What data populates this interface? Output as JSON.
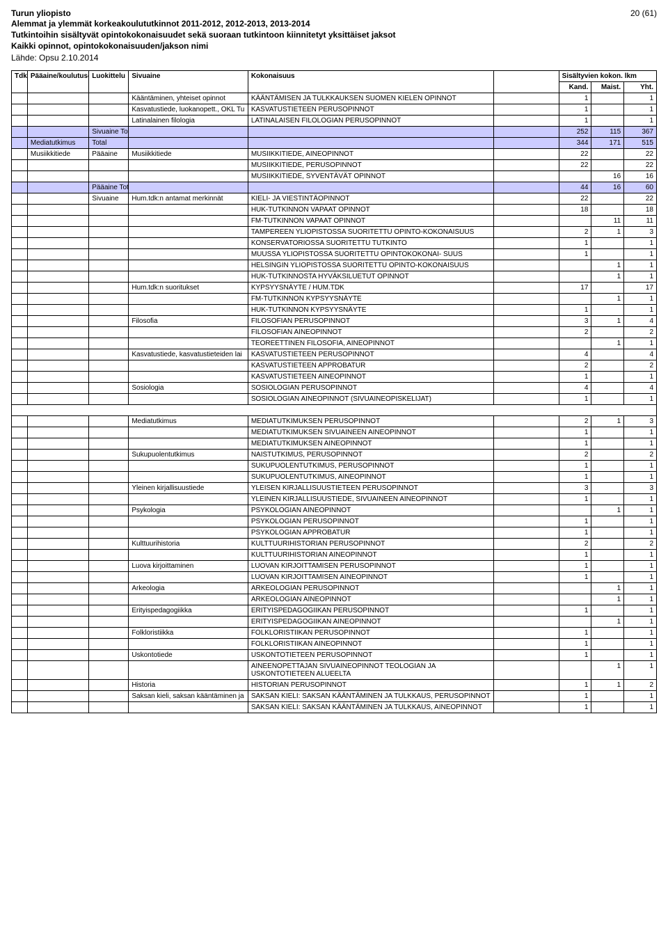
{
  "header": {
    "org": "Turun yliopisto",
    "page": "20 (61)",
    "line2": "Alemmat ja ylemmät korkeakoulututkinnot 2011-2012, 2012-2013, 2013-2014",
    "line3": "Tutkintoihin sisältyvät opintokokonaisuudet sekä suoraan tutkintoon kiinnitetyt yksittäiset jaksot",
    "line4": "Kaikki opinnot, opintokokonaisuuden/jakson nimi",
    "line5": "Lähde: Opsu 2.10.2014"
  },
  "table": {
    "columns": {
      "tdk": "Tdk",
      "paa": "Pääaine/koulutusohjelma",
      "luo": "Luokittelu",
      "siv": "Sivuaine",
      "kok": "Kokonaisuus",
      "sis_label": "Sisältyvien kokon. lkm",
      "kand": "Kand.",
      "maist": "Maist.",
      "yht": "Yht."
    },
    "rows": [
      {
        "siv": "Kääntäminen, yhteiset opinnot",
        "kok": "KÄÄNTÄMISEN JA TULKKAUKSEN SUOMEN KIELEN OPINNOT",
        "kand": "1",
        "maist": "",
        "yht": "1",
        "wrap": true
      },
      {
        "siv": "Kasvatustiede, luokanopett., OKL Tu",
        "kok": "KASVATUSTIETEEN PERUSOPINNOT",
        "kand": "1",
        "maist": "",
        "yht": "1"
      },
      {
        "siv": "Latinalainen filologia",
        "kok": "LATINALAISEN FILOLOGIAN PERUSOPINNOT",
        "kand": "1",
        "maist": "",
        "yht": "1"
      },
      {
        "luo": "Sivuaine Total",
        "kand": "252",
        "maist": "115",
        "yht": "367",
        "hl": true
      },
      {
        "paa": "Mediatutkimus",
        "luo": "Total",
        "kand": "344",
        "maist": "171",
        "yht": "515",
        "hl": true
      },
      {
        "paa": "Musiikkitiede",
        "luo": "Pääaine",
        "siv": "Musiikkitiede",
        "kok": "MUSIIKKITIEDE, AINEOPINNOT",
        "kand": "22",
        "maist": "",
        "yht": "22"
      },
      {
        "kok": "MUSIIKKITIEDE, PERUSOPINNOT",
        "kand": "22",
        "maist": "",
        "yht": "22"
      },
      {
        "kok": "MUSIIKKITIEDE, SYVENTÄVÄT OPINNOT",
        "kand": "",
        "maist": "16",
        "yht": "16"
      },
      {
        "luo": "Pääaine Total",
        "kand": "44",
        "maist": "16",
        "yht": "60",
        "hl": true
      },
      {
        "luo": "Sivuaine",
        "siv": "Hum.tdk:n antamat merkinnät",
        "kok": "KIELI- JA VIESTINTÄOPINNOT",
        "kand": "22",
        "maist": "",
        "yht": "22"
      },
      {
        "kok": "HUK-TUTKINNON VAPAAT OPINNOT",
        "kand": "18",
        "maist": "",
        "yht": "18"
      },
      {
        "kok": "FM-TUTKINNON VAPAAT OPINNOT",
        "kand": "",
        "maist": "11",
        "yht": "11"
      },
      {
        "kok": "TAMPEREEN YLIOPISTOSSA SUORITETTU OPINTO-KOKONAISUUS",
        "kand": "2",
        "maist": "1",
        "yht": "3",
        "wrap": true
      },
      {
        "kok": "KONSERVATORIOSSA SUORITETTU TUTKINTO",
        "kand": "1",
        "maist": "",
        "yht": "1"
      },
      {
        "kok": "MUUSSA YLIOPISTOSSA SUORITETTU OPINTOKOKONAI- SUUS",
        "kand": "1",
        "maist": "",
        "yht": "1",
        "wrap": true
      },
      {
        "kok": "HELSINGIN YLIOPISTOSSA SUORITETTU OPINTO-KOKONAISUUS",
        "kand": "",
        "maist": "1",
        "yht": "1",
        "wrap": true
      },
      {
        "kok": "HUK-TUTKINNOSTA HYVÄKSILUETUT OPINNOT",
        "kand": "",
        "maist": "1",
        "yht": "1"
      },
      {
        "siv": "Hum.tdk:n suoritukset",
        "kok": "KYPSYYSNÄYTE / HUM.TDK",
        "kand": "17",
        "maist": "",
        "yht": "17"
      },
      {
        "kok": "FM-TUTKINNON KYPSYYSNÄYTE",
        "kand": "",
        "maist": "1",
        "yht": "1"
      },
      {
        "kok": "HUK-TUTKINNON KYPSYYSNÄYTE",
        "kand": "1",
        "maist": "",
        "yht": "1"
      },
      {
        "siv": "Filosofia",
        "kok": "FILOSOFIAN PERUSOPINNOT",
        "kand": "3",
        "maist": "1",
        "yht": "4"
      },
      {
        "kok": "FILOSOFIAN AINEOPINNOT",
        "kand": "2",
        "maist": "",
        "yht": "2"
      },
      {
        "kok": "TEOREETTINEN FILOSOFIA, AINEOPINNOT",
        "kand": "",
        "maist": "1",
        "yht": "1"
      },
      {
        "siv": "Kasvatustiede, kasvatustieteiden lai",
        "kok": "KASVATUSTIETEEN PERUSOPINNOT",
        "kand": "4",
        "maist": "",
        "yht": "4"
      },
      {
        "kok": "KASVATUSTIETEEN APPROBATUR",
        "kand": "2",
        "maist": "",
        "yht": "2"
      },
      {
        "kok": "KASVATUSTIETEEN AINEOPINNOT",
        "kand": "1",
        "maist": "",
        "yht": "1"
      },
      {
        "siv": "Sosiologia",
        "kok": "SOSIOLOGIAN PERUSOPINNOT",
        "kand": "4",
        "maist": "",
        "yht": "4"
      },
      {
        "kok": "SOSIOLOGIAN AINEOPINNOT (SIVUAINEOPISKELIJAT)",
        "kand": "1",
        "maist": "",
        "yht": "1"
      },
      {
        "gap": true
      },
      {
        "siv": "Mediatutkimus",
        "kok": "MEDIATUTKIMUKSEN PERUSOPINNOT",
        "kand": "2",
        "maist": "1",
        "yht": "3"
      },
      {
        "kok": "MEDIATUTKIMUKSEN SIVUAINEEN AINEOPINNOT",
        "kand": "1",
        "maist": "",
        "yht": "1"
      },
      {
        "kok": "MEDIATUTKIMUKSEN AINEOPINNOT",
        "kand": "1",
        "maist": "",
        "yht": "1"
      },
      {
        "siv": "Sukupuolentutkimus",
        "kok": "NAISTUTKIMUS, PERUSOPINNOT",
        "kand": "2",
        "maist": "",
        "yht": "2"
      },
      {
        "kok": "SUKUPUOLENTUTKIMUS, PERUSOPINNOT",
        "kand": "1",
        "maist": "",
        "yht": "1"
      },
      {
        "kok": "SUKUPUOLENTUTKIMUS, AINEOPINNOT",
        "kand": "1",
        "maist": "",
        "yht": "1"
      },
      {
        "siv": "Yleinen kirjallisuustiede",
        "kok": "YLEISEN KIRJALLISUUSTIETEEN PERUSOPINNOT",
        "kand": "3",
        "maist": "",
        "yht": "3"
      },
      {
        "kok": "YLEINEN KIRJALLISUUSTIEDE, SIVUAINEEN AINEOPINNOT",
        "kand": "1",
        "maist": "",
        "yht": "1",
        "wrap": true
      },
      {
        "siv": "Psykologia",
        "kok": "PSYKOLOGIAN AINEOPINNOT",
        "kand": "",
        "maist": "1",
        "yht": "1"
      },
      {
        "kok": "PSYKOLOGIAN PERUSOPINNOT",
        "kand": "1",
        "maist": "",
        "yht": "1"
      },
      {
        "kok": "PSYKOLOGIAN APPROBATUR",
        "kand": "1",
        "maist": "",
        "yht": "1"
      },
      {
        "siv": "Kulttuurihistoria",
        "kok": "KULTTUURIHISTORIAN PERUSOPINNOT",
        "kand": "2",
        "maist": "",
        "yht": "2"
      },
      {
        "kok": "KULTTUURIHISTORIAN AINEOPINNOT",
        "kand": "1",
        "maist": "",
        "yht": "1"
      },
      {
        "siv": "Luova kirjoittaminen",
        "kok": "LUOVAN KIRJOITTAMISEN PERUSOPINNOT",
        "kand": "1",
        "maist": "",
        "yht": "1"
      },
      {
        "kok": "LUOVAN KIRJOITTAMISEN AINEOPINNOT",
        "kand": "1",
        "maist": "",
        "yht": "1"
      },
      {
        "siv": "Arkeologia",
        "kok": "ARKEOLOGIAN PERUSOPINNOT",
        "kand": "",
        "maist": "1",
        "yht": "1"
      },
      {
        "kok": "ARKEOLOGIAN AINEOPINNOT",
        "kand": "",
        "maist": "1",
        "yht": "1"
      },
      {
        "siv": "Erityispedagogiikka",
        "kok": "ERITYISPEDAGOGIIKAN PERUSOPINNOT",
        "kand": "1",
        "maist": "",
        "yht": "1"
      },
      {
        "kok": "ERITYISPEDAGOGIIKAN AINEOPINNOT",
        "kand": "",
        "maist": "1",
        "yht": "1"
      },
      {
        "siv": "Folkloristiikka",
        "kok": "FOLKLORISTIIKAN PERUSOPINNOT",
        "kand": "1",
        "maist": "",
        "yht": "1"
      },
      {
        "kok": "FOLKLORISTIIKAN AINEOPINNOT",
        "kand": "1",
        "maist": "",
        "yht": "1"
      },
      {
        "siv": "Uskontotiede",
        "kok": "USKONTOTIETEEN PERUSOPINNOT",
        "kand": "1",
        "maist": "",
        "yht": "1"
      },
      {
        "kok": "AINEENOPETTAJAN SIVUAINEOPINNOT TEOLOGIAN JA USKONTOTIETEEN ALUEELTA",
        "kand": "",
        "maist": "1",
        "yht": "1",
        "wrap": true
      },
      {
        "siv": "Historia",
        "kok": "HISTORIAN PERUSOPINNOT",
        "kand": "1",
        "maist": "1",
        "yht": "2"
      },
      {
        "siv": "Saksan kieli, saksan kääntäminen ja",
        "kok": "SAKSAN KIELI: SAKSAN KÄÄNTÄMINEN JA TULKKAUS, PERUSOPINNOT",
        "kand": "1",
        "maist": "",
        "yht": "1",
        "wrap": true
      },
      {
        "kok": "SAKSAN KIELI: SAKSAN KÄÄNTÄMINEN JA TULKKAUS, AINEOPINNOT",
        "kand": "1",
        "maist": "",
        "yht": "1",
        "wrap": true
      }
    ],
    "colors": {
      "highlight_bg": "#ccccff",
      "border": "#000000"
    }
  }
}
